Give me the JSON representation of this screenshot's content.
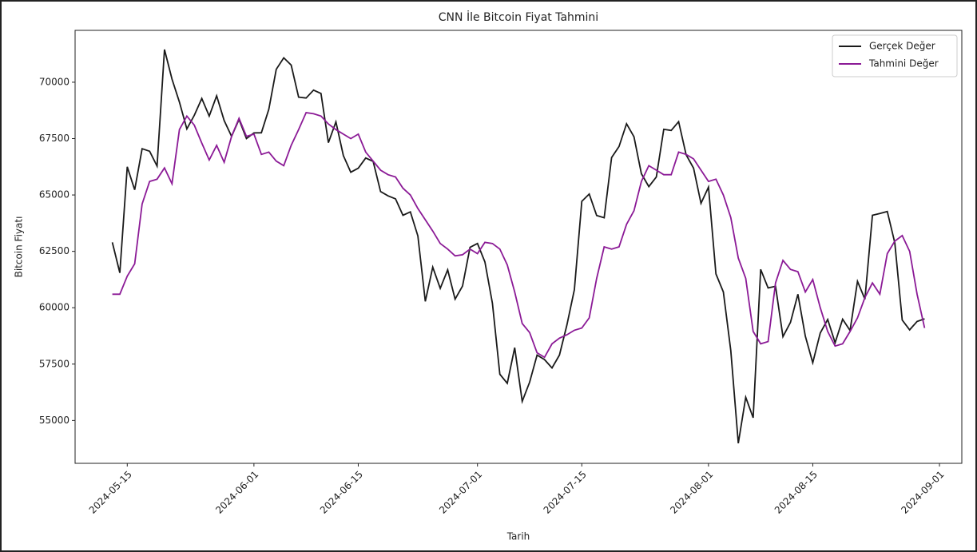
{
  "chart_data": {
    "type": "line",
    "title": "CNN İle Bitcoin Fiyat Tahmini",
    "xlabel": "Tarih",
    "ylabel": "Bitcoin Fiyatı",
    "x": [
      "2024-05-13",
      "2024-05-14",
      "2024-05-15",
      "2024-05-16",
      "2024-05-17",
      "2024-05-18",
      "2024-05-19",
      "2024-05-20",
      "2024-05-21",
      "2024-05-22",
      "2024-05-23",
      "2024-05-24",
      "2024-05-25",
      "2024-05-26",
      "2024-05-27",
      "2024-05-28",
      "2024-05-29",
      "2024-05-30",
      "2024-05-31",
      "2024-06-01",
      "2024-06-02",
      "2024-06-03",
      "2024-06-04",
      "2024-06-05",
      "2024-06-06",
      "2024-06-07",
      "2024-06-08",
      "2024-06-09",
      "2024-06-10",
      "2024-06-11",
      "2024-06-12",
      "2024-06-13",
      "2024-06-14",
      "2024-06-15",
      "2024-06-16",
      "2024-06-17",
      "2024-06-18",
      "2024-06-19",
      "2024-06-20",
      "2024-06-21",
      "2024-06-22",
      "2024-06-23",
      "2024-06-24",
      "2024-06-25",
      "2024-06-26",
      "2024-06-27",
      "2024-06-28",
      "2024-06-29",
      "2024-06-30",
      "2024-07-01",
      "2024-07-02",
      "2024-07-03",
      "2024-07-04",
      "2024-07-05",
      "2024-07-06",
      "2024-07-07",
      "2024-07-08",
      "2024-07-09",
      "2024-07-10",
      "2024-07-11",
      "2024-07-12",
      "2024-07-13",
      "2024-07-14",
      "2024-07-15",
      "2024-07-16",
      "2024-07-17",
      "2024-07-18",
      "2024-07-19",
      "2024-07-20",
      "2024-07-21",
      "2024-07-22",
      "2024-07-23",
      "2024-07-24",
      "2024-07-25",
      "2024-07-26",
      "2024-07-27",
      "2024-07-28",
      "2024-07-29",
      "2024-07-30",
      "2024-07-31",
      "2024-08-01",
      "2024-08-02",
      "2024-08-03",
      "2024-08-04",
      "2024-08-05",
      "2024-08-06",
      "2024-08-07",
      "2024-08-08",
      "2024-08-09",
      "2024-08-10",
      "2024-08-11",
      "2024-08-12",
      "2024-08-13",
      "2024-08-14",
      "2024-08-15",
      "2024-08-16",
      "2024-08-17",
      "2024-08-18",
      "2024-08-19",
      "2024-08-20",
      "2024-08-21",
      "2024-08-22",
      "2024-08-23",
      "2024-08-24",
      "2024-08-25",
      "2024-08-26",
      "2024-08-27",
      "2024-08-28",
      "2024-08-29",
      "2024-08-30"
    ],
    "series": [
      {
        "name": "Gerçek Değer",
        "color": "#1a1a1a",
        "values": [
          62900,
          61550,
          66250,
          65230,
          67050,
          66940,
          66280,
          71450,
          70140,
          69120,
          67930,
          68530,
          69280,
          68500,
          69400,
          68300,
          67600,
          68350,
          67500,
          67750,
          67760,
          68800,
          70570,
          71080,
          70760,
          69340,
          69300,
          69650,
          69500,
          67320,
          68240,
          66750,
          66010,
          66190,
          66640,
          66490,
          65150,
          64960,
          64830,
          64100,
          64250,
          63180,
          60280,
          61800,
          60860,
          61680,
          60380,
          60960,
          62680,
          62850,
          62030,
          60200,
          57050,
          56650,
          58230,
          55850,
          56700,
          57900,
          57700,
          57330,
          57900,
          59230,
          60800,
          64720,
          65040,
          64090,
          63990,
          66660,
          67150,
          68160,
          67580,
          65940,
          65370,
          65800,
          67910,
          67860,
          68250,
          66780,
          66190,
          64630,
          65350,
          61500,
          60700,
          58100,
          53990,
          56030,
          55120,
          61700,
          60880,
          60950,
          58720,
          59350,
          60600,
          58740,
          57560,
          58880,
          59480,
          58450,
          59490,
          58990,
          61170,
          60380,
          64100,
          64180,
          64270,
          62880,
          59450,
          59020,
          59390,
          59510
        ]
      },
      {
        "name": "Tahmini Değer",
        "color": "#8b1a96",
        "values": [
          60600,
          60600,
          61400,
          61950,
          64600,
          65600,
          65700,
          66200,
          65500,
          67900,
          68500,
          68100,
          67300,
          66550,
          67200,
          66450,
          67600,
          68400,
          67600,
          67700,
          66800,
          66900,
          66500,
          66300,
          67200,
          67900,
          68650,
          68600,
          68500,
          68150,
          67900,
          67700,
          67500,
          67700,
          66900,
          66500,
          66100,
          65900,
          65800,
          65300,
          65000,
          64400,
          63900,
          63400,
          62850,
          62600,
          62300,
          62350,
          62600,
          62400,
          62900,
          62850,
          62600,
          61900,
          60700,
          59300,
          58900,
          58000,
          57800,
          58400,
          58650,
          58800,
          59000,
          59100,
          59550,
          61300,
          62700,
          62600,
          62700,
          63700,
          64300,
          65600,
          66300,
          66100,
          65900,
          65900,
          66900,
          66800,
          66600,
          66100,
          65600,
          65700,
          65000,
          64000,
          62200,
          61300,
          58950,
          58400,
          58500,
          61100,
          62100,
          61700,
          61600,
          60700,
          61250,
          60000,
          58950,
          58300,
          58400,
          58950,
          59550,
          60450,
          61100,
          60600,
          62400,
          62950,
          63200,
          62500,
          60600,
          59100
        ]
      }
    ],
    "xlim": [
      "2024-05-08",
      "2024-09-04"
    ],
    "xticks": [
      "2024-05-15",
      "2024-06-01",
      "2024-06-15",
      "2024-07-01",
      "2024-07-15",
      "2024-08-01",
      "2024-08-15",
      "2024-09-01"
    ],
    "ylim": [
      53100,
      72300
    ],
    "yticks": [
      55000,
      57500,
      60000,
      62500,
      65000,
      67500,
      70000
    ],
    "grid": false,
    "legend": "upper right"
  }
}
